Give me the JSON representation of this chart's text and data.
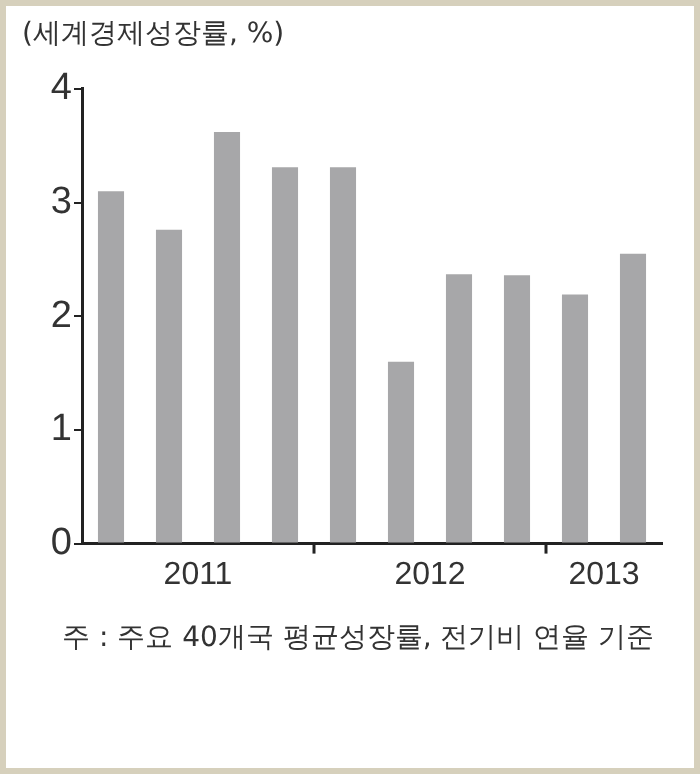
{
  "chart_data": {
    "type": "bar",
    "ylabel": "(세계경제성장률, %)",
    "x": [
      2011.125,
      2011.375,
      2011.625,
      2011.875,
      2012.125,
      2012.375,
      2012.625,
      2012.875,
      2013.125,
      2013.375
    ],
    "values": [
      3.1,
      2.76,
      3.62,
      3.31,
      3.31,
      1.6,
      2.37,
      2.36,
      2.19,
      2.55
    ],
    "color": "#a7a7a9",
    "xlim": [
      2011,
      2013.5
    ],
    "xticks": [
      {
        "value": 2011.5,
        "label": "2011"
      },
      {
        "value": 2012,
        "label": null
      },
      {
        "value": 2012.5,
        "label": "2012"
      },
      {
        "value": 2013,
        "label": null
      },
      {
        "value": 2013.25,
        "label": "2013"
      }
    ],
    "ylim": [
      0,
      4
    ],
    "yticks": [
      0,
      1,
      2,
      3,
      4
    ],
    "grid": false,
    "legend": false,
    "annotations": [
      "주 : 주요 40개국 평균성장률, 전기비 연율 기준"
    ]
  }
}
